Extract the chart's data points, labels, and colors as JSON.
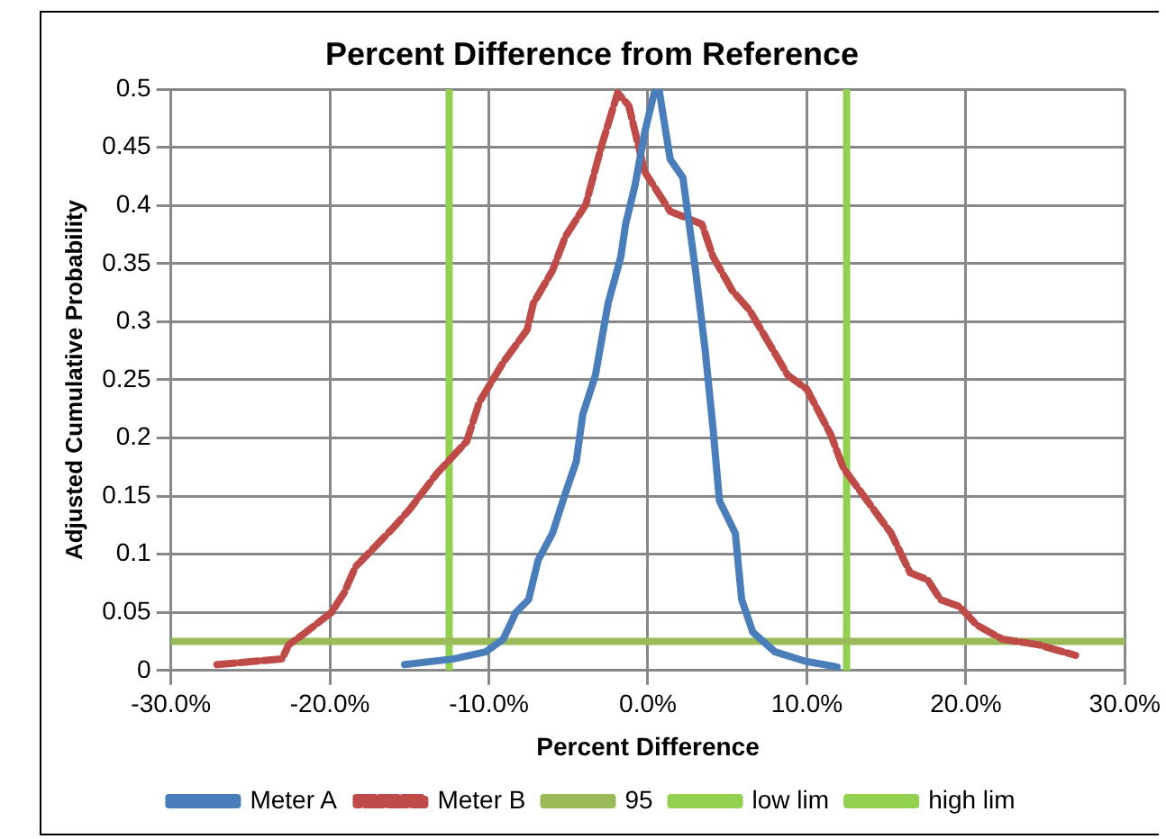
{
  "chart_data": {
    "type": "line",
    "title": "Percent Difference from Reference",
    "xlabel": "Percent Difference",
    "ylabel": "Adjusted Cumulative Probability",
    "xlim": [
      -30,
      30
    ],
    "ylim": [
      0,
      0.5
    ],
    "xticks": [
      {
        "value": -30,
        "label": "-30.0%"
      },
      {
        "value": -20,
        "label": "-20.0%"
      },
      {
        "value": -10,
        "label": "-10.0%"
      },
      {
        "value": 0,
        "label": "0.0%"
      },
      {
        "value": 10,
        "label": "10.0%"
      },
      {
        "value": 20,
        "label": "20.0%"
      },
      {
        "value": 30,
        "label": "30.0%"
      }
    ],
    "yticks": [
      0,
      0.05,
      0.1,
      0.15,
      0.2,
      0.25,
      0.3,
      0.35,
      0.4,
      0.45,
      0.5
    ],
    "grid": true,
    "legend": "bottom",
    "marker": "none",
    "series": [
      {
        "name": "Meter A",
        "color": "#4a7ebb",
        "line_style": "solid",
        "x": [
          -15.3,
          -12.2,
          -10.2,
          -9.1,
          -8.3,
          -7.5,
          -6.9,
          -6.0,
          -5.2,
          -4.5,
          -4.1,
          -3.3,
          -2.5,
          -1.7,
          -1.4,
          -0.8,
          -0.2,
          0.4,
          0.7,
          1.4,
          2.2,
          3.0,
          3.6,
          4.1,
          4.5,
          5.5,
          5.9,
          6.6,
          8.0,
          9.9,
          11.9
        ],
        "values": [
          0.005,
          0.01,
          0.016,
          0.027,
          0.05,
          0.061,
          0.095,
          0.118,
          0.152,
          0.18,
          0.22,
          0.254,
          0.316,
          0.356,
          0.384,
          0.418,
          0.463,
          0.497,
          0.5,
          0.44,
          0.424,
          0.344,
          0.276,
          0.208,
          0.146,
          0.118,
          0.061,
          0.033,
          0.016,
          0.008,
          0.003
        ]
      },
      {
        "name": "Meter B",
        "color": "#be4b48",
        "line_style": "dashed",
        "x": [
          -27.1,
          -23.0,
          -22.6,
          -21.5,
          -19.9,
          -19.1,
          -18.4,
          -17.2,
          -16.0,
          -14.9,
          -13.3,
          -11.4,
          -10.6,
          -9.1,
          -7.6,
          -7.2,
          -6.0,
          -5.2,
          -3.9,
          -2.9,
          -1.9,
          -1.2,
          -0.2,
          1.4,
          3.4,
          4.1,
          5.3,
          6.4,
          7.6,
          8.8,
          10.0,
          11.5,
          12.3,
          13.8,
          15.3,
          16.5,
          17.6,
          18.4,
          19.6,
          20.7,
          22.3,
          24.6,
          26.9
        ],
        "values": [
          0.005,
          0.01,
          0.022,
          0.033,
          0.05,
          0.067,
          0.089,
          0.106,
          0.123,
          0.14,
          0.169,
          0.197,
          0.231,
          0.265,
          0.293,
          0.316,
          0.344,
          0.373,
          0.401,
          0.452,
          0.497,
          0.486,
          0.429,
          0.395,
          0.384,
          0.356,
          0.327,
          0.31,
          0.282,
          0.254,
          0.242,
          0.203,
          0.174,
          0.146,
          0.118,
          0.084,
          0.078,
          0.061,
          0.055,
          0.039,
          0.027,
          0.022,
          0.013
        ]
      },
      {
        "name": "95",
        "color": "#9bbb59",
        "line_style": "solid",
        "x": [
          -30,
          30
        ],
        "values": [
          0.025,
          0.025
        ]
      },
      {
        "name": "low lim",
        "color": "#92d050",
        "line_style": "solid",
        "x": [
          -12.5,
          -12.5
        ],
        "values": [
          0,
          0.5
        ]
      },
      {
        "name": "high lim",
        "color": "#92d050",
        "line_style": "solid",
        "x": [
          12.5,
          12.5
        ],
        "values": [
          0,
          0.5
        ]
      }
    ]
  }
}
